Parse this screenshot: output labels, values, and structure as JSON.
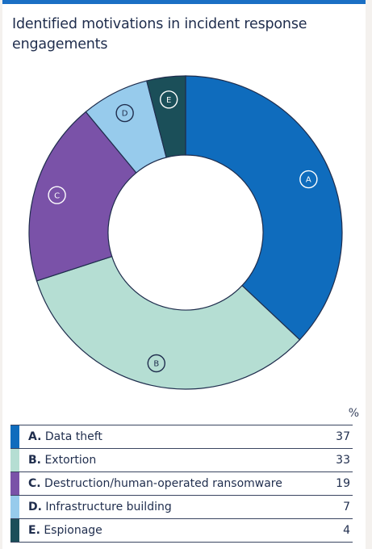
{
  "title": "Identified motivations in incident response engagements",
  "legend_unit": "%",
  "chart_data": {
    "type": "donut",
    "title": "Identified motivations in incident response engagements",
    "unit": "%",
    "slices": [
      {
        "marker": "A",
        "label": "Data theft",
        "value": 37,
        "color": "#0f6cbd"
      },
      {
        "marker": "B",
        "label": "Extortion",
        "value": 33,
        "color": "#b5ded3"
      },
      {
        "marker": "C",
        "label": "Destruction/human-operated ransomware",
        "value": 19,
        "color": "#7a52a8"
      },
      {
        "marker": "D",
        "label": "Infrastructure building",
        "value": 7,
        "color": "#97cbec"
      },
      {
        "marker": "E",
        "label": "Espionage",
        "value": 4,
        "color": "#1b4f59"
      }
    ]
  }
}
